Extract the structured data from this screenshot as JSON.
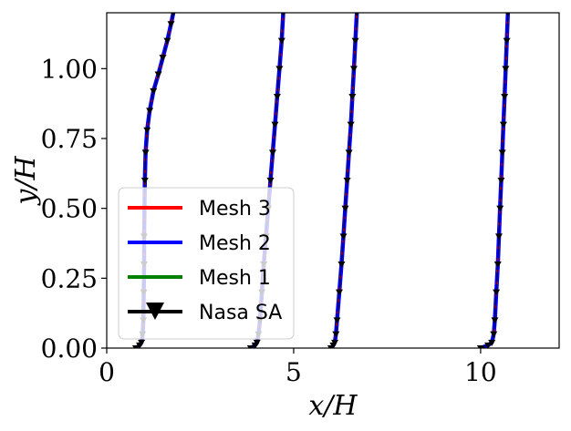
{
  "chart_data": {
    "type": "line",
    "xlabel": "x/H",
    "ylabel": "y/H",
    "xlim": [
      0,
      12.1
    ],
    "ylim": [
      0,
      1.2
    ],
    "grid": false,
    "legend_position": "bottom-left",
    "x_ticks": [
      {
        "value": 0,
        "label": "0"
      },
      {
        "value": 5,
        "label": "5"
      },
      {
        "value": 10,
        "label": "10"
      }
    ],
    "y_ticks": [
      {
        "value": 0.0,
        "label": "0.00"
      },
      {
        "value": 0.25,
        "label": "0.25"
      },
      {
        "value": 0.5,
        "label": "0.50"
      },
      {
        "value": 0.75,
        "label": "0.75"
      },
      {
        "value": 1.0,
        "label": "1.00"
      }
    ],
    "series": [
      {
        "name": "Mesh 3",
        "color": "#ff0000",
        "style": "line",
        "marker": "none"
      },
      {
        "name": "Mesh 2",
        "color": "#0000ff",
        "style": "line",
        "marker": "none"
      },
      {
        "name": "Mesh 1",
        "color": "#008000",
        "style": "line",
        "marker": "none"
      },
      {
        "name": "Nasa SA",
        "color": "#000000",
        "style": "line",
        "marker": "triangle-down"
      }
    ],
    "profiles": [
      {
        "station": 1,
        "points": [
          [
            0.78,
            0.0
          ],
          [
            0.88,
            0.01
          ],
          [
            0.93,
            0.02
          ],
          [
            0.96,
            0.05
          ],
          [
            0.98,
            0.1
          ],
          [
            0.99,
            0.2
          ],
          [
            1.0,
            0.3
          ],
          [
            1.0,
            0.4
          ],
          [
            1.01,
            0.5
          ],
          [
            1.02,
            0.6
          ],
          [
            1.04,
            0.7
          ],
          [
            1.08,
            0.78
          ],
          [
            1.15,
            0.85
          ],
          [
            1.25,
            0.92
          ],
          [
            1.38,
            0.98
          ],
          [
            1.5,
            1.04
          ],
          [
            1.62,
            1.1
          ],
          [
            1.72,
            1.16
          ],
          [
            1.78,
            1.2
          ]
        ]
      },
      {
        "station": 2,
        "points": [
          [
            3.85,
            0.0
          ],
          [
            3.97,
            0.01
          ],
          [
            4.02,
            0.02
          ],
          [
            4.06,
            0.05
          ],
          [
            4.1,
            0.1
          ],
          [
            4.15,
            0.2
          ],
          [
            4.2,
            0.3
          ],
          [
            4.26,
            0.4
          ],
          [
            4.32,
            0.5
          ],
          [
            4.38,
            0.6
          ],
          [
            4.44,
            0.7
          ],
          [
            4.5,
            0.8
          ],
          [
            4.56,
            0.9
          ],
          [
            4.62,
            1.0
          ],
          [
            4.68,
            1.1
          ],
          [
            4.72,
            1.2
          ]
        ]
      },
      {
        "station": 3,
        "points": [
          [
            6.0,
            0.0
          ],
          [
            6.06,
            0.01
          ],
          [
            6.1,
            0.02
          ],
          [
            6.13,
            0.05
          ],
          [
            6.16,
            0.1
          ],
          [
            6.22,
            0.2
          ],
          [
            6.28,
            0.3
          ],
          [
            6.33,
            0.4
          ],
          [
            6.38,
            0.5
          ],
          [
            6.43,
            0.6
          ],
          [
            6.48,
            0.7
          ],
          [
            6.53,
            0.8
          ],
          [
            6.57,
            0.9
          ],
          [
            6.61,
            1.0
          ],
          [
            6.65,
            1.1
          ],
          [
            6.69,
            1.2
          ]
        ]
      },
      {
        "station": 4,
        "points": [
          [
            10.0,
            0.0
          ],
          [
            10.2,
            0.01
          ],
          [
            10.3,
            0.02
          ],
          [
            10.35,
            0.05
          ],
          [
            10.38,
            0.1
          ],
          [
            10.42,
            0.2
          ],
          [
            10.46,
            0.3
          ],
          [
            10.49,
            0.4
          ],
          [
            10.52,
            0.5
          ],
          [
            10.55,
            0.6
          ],
          [
            10.58,
            0.7
          ],
          [
            10.61,
            0.8
          ],
          [
            10.64,
            0.9
          ],
          [
            10.67,
            1.0
          ],
          [
            10.7,
            1.1
          ],
          [
            10.73,
            1.2
          ]
        ]
      }
    ]
  }
}
